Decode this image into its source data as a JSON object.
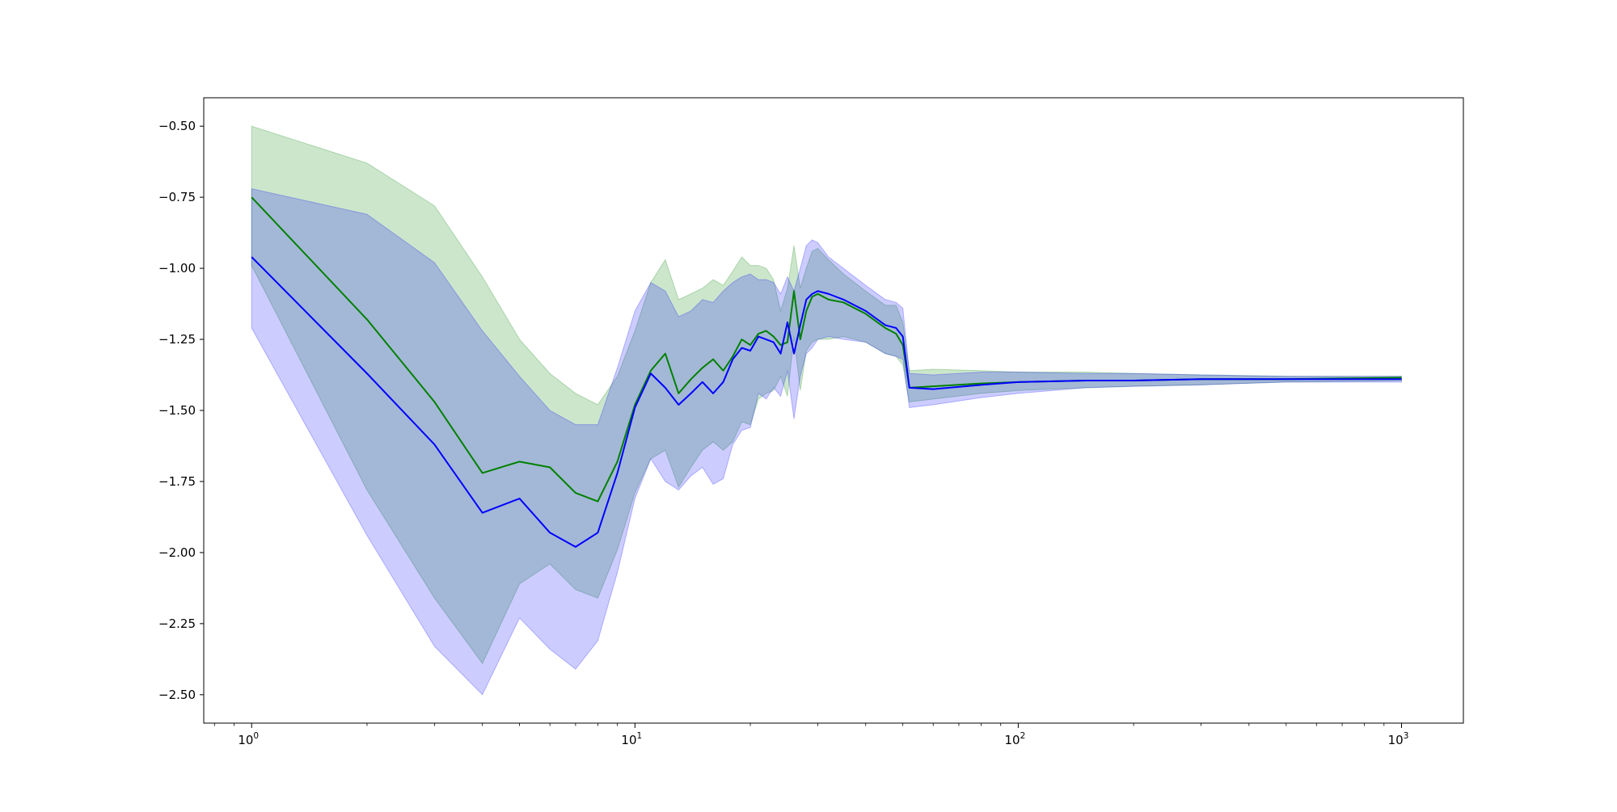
{
  "chart_data": {
    "type": "line",
    "title": "",
    "xlabel": "",
    "ylabel": "",
    "xscale": "log",
    "xlim": [
      0.75,
      1450
    ],
    "ylim": [
      -2.6,
      -0.4
    ],
    "grid": false,
    "legend": "none",
    "x_ticks": [
      {
        "value": 1,
        "base": "10",
        "exp": "0"
      },
      {
        "value": 10,
        "base": "10",
        "exp": "1"
      },
      {
        "value": 100,
        "base": "10",
        "exp": "2"
      },
      {
        "value": 1000,
        "base": "10",
        "exp": "3"
      }
    ],
    "y_ticks": [
      {
        "value": -0.5,
        "label": "−0.50"
      },
      {
        "value": -0.75,
        "label": "−0.75"
      },
      {
        "value": -1.0,
        "label": "−1.00"
      },
      {
        "value": -1.25,
        "label": "−1.25"
      },
      {
        "value": -1.5,
        "label": "−1.50"
      },
      {
        "value": -1.75,
        "label": "−1.75"
      },
      {
        "value": -2.0,
        "label": "−2.00"
      },
      {
        "value": -2.25,
        "label": "−2.25"
      },
      {
        "value": -2.5,
        "label": "−2.50"
      }
    ],
    "series": [
      {
        "color": "#008000",
        "band_color": "#008000",
        "band_opacity": 0.2,
        "x": [
          1,
          2,
          3,
          4,
          5,
          6,
          7,
          8,
          9,
          10,
          11,
          12,
          13,
          14,
          15,
          16,
          17,
          18,
          19,
          20,
          21,
          22,
          23,
          24,
          25,
          26,
          27,
          28,
          29,
          30,
          32,
          35,
          40,
          45,
          48,
          50,
          52,
          60,
          80,
          100,
          150,
          200,
          300,
          500,
          1000
        ],
        "values": [
          -0.75,
          -1.18,
          -1.47,
          -1.72,
          -1.68,
          -1.7,
          -1.79,
          -1.82,
          -1.68,
          -1.48,
          -1.36,
          -1.3,
          -1.44,
          -1.39,
          -1.35,
          -1.32,
          -1.36,
          -1.31,
          -1.25,
          -1.27,
          -1.23,
          -1.22,
          -1.24,
          -1.27,
          -1.26,
          -1.08,
          -1.25,
          -1.15,
          -1.1,
          -1.09,
          -1.11,
          -1.12,
          -1.16,
          -1.21,
          -1.23,
          -1.27,
          -1.42,
          -1.415,
          -1.405,
          -1.4,
          -1.395,
          -1.395,
          -1.39,
          -1.39,
          -1.385
        ],
        "upper": [
          -0.5,
          -0.63,
          -0.78,
          -1.03,
          -1.25,
          -1.37,
          -1.44,
          -1.48,
          -1.38,
          -1.22,
          -1.05,
          -0.97,
          -1.11,
          -1.09,
          -1.07,
          -1.04,
          -1.06,
          -1.01,
          -0.96,
          -0.99,
          -0.99,
          -1.0,
          -1.04,
          -1.15,
          -1.07,
          -0.92,
          -1.07,
          -1.0,
          -0.94,
          -0.93,
          -0.97,
          -1.02,
          -1.08,
          -1.13,
          -1.13,
          -1.19,
          -1.36,
          -1.355,
          -1.36,
          -1.365,
          -1.365,
          -1.37,
          -1.375,
          -1.38,
          -1.38
        ],
        "lower": [
          -0.99,
          -1.78,
          -2.16,
          -2.39,
          -2.11,
          -2.04,
          -2.13,
          -2.16,
          -1.99,
          -1.79,
          -1.67,
          -1.64,
          -1.77,
          -1.7,
          -1.64,
          -1.61,
          -1.64,
          -1.61,
          -1.54,
          -1.55,
          -1.46,
          -1.44,
          -1.43,
          -1.38,
          -1.45,
          -1.24,
          -1.43,
          -1.29,
          -1.26,
          -1.25,
          -1.25,
          -1.24,
          -1.26,
          -1.3,
          -1.31,
          -1.34,
          -1.47,
          -1.46,
          -1.44,
          -1.43,
          -1.42,
          -1.415,
          -1.41,
          -1.4,
          -1.395
        ]
      },
      {
        "color": "#0000ff",
        "band_color": "#0000ff",
        "band_opacity": 0.2,
        "x": [
          1,
          2,
          3,
          4,
          5,
          6,
          7,
          8,
          9,
          10,
          11,
          12,
          13,
          14,
          15,
          16,
          17,
          18,
          19,
          20,
          21,
          22,
          23,
          24,
          25,
          26,
          27,
          28,
          29,
          30,
          32,
          35,
          40,
          45,
          48,
          50,
          52,
          60,
          80,
          100,
          150,
          200,
          300,
          500,
          1000
        ],
        "values": [
          -0.96,
          -1.37,
          -1.62,
          -1.86,
          -1.81,
          -1.93,
          -1.98,
          -1.93,
          -1.72,
          -1.49,
          -1.37,
          -1.42,
          -1.48,
          -1.44,
          -1.4,
          -1.44,
          -1.4,
          -1.32,
          -1.28,
          -1.29,
          -1.24,
          -1.25,
          -1.26,
          -1.3,
          -1.19,
          -1.3,
          -1.2,
          -1.11,
          -1.09,
          -1.08,
          -1.09,
          -1.11,
          -1.15,
          -1.2,
          -1.21,
          -1.24,
          -1.42,
          -1.425,
          -1.41,
          -1.4,
          -1.395,
          -1.395,
          -1.39,
          -1.39,
          -1.39
        ],
        "upper": [
          -0.72,
          -0.81,
          -0.98,
          -1.22,
          -1.38,
          -1.5,
          -1.55,
          -1.55,
          -1.35,
          -1.15,
          -1.05,
          -1.08,
          -1.17,
          -1.15,
          -1.11,
          -1.12,
          -1.08,
          -1.05,
          -1.03,
          -1.02,
          -1.04,
          -1.04,
          -1.05,
          -1.09,
          -1.03,
          -1.08,
          -1.0,
          -0.92,
          -0.9,
          -0.91,
          -0.96,
          -1.0,
          -1.06,
          -1.11,
          -1.12,
          -1.14,
          -1.37,
          -1.375,
          -1.365,
          -1.365,
          -1.37,
          -1.37,
          -1.375,
          -1.38,
          -1.38
        ],
        "lower": [
          -1.21,
          -1.94,
          -2.33,
          -2.5,
          -2.23,
          -2.34,
          -2.41,
          -2.31,
          -2.07,
          -1.81,
          -1.67,
          -1.75,
          -1.78,
          -1.73,
          -1.7,
          -1.76,
          -1.74,
          -1.62,
          -1.57,
          -1.56,
          -1.44,
          -1.46,
          -1.42,
          -1.45,
          -1.36,
          -1.53,
          -1.38,
          -1.3,
          -1.28,
          -1.25,
          -1.24,
          -1.25,
          -1.26,
          -1.3,
          -1.31,
          -1.32,
          -1.49,
          -1.48,
          -1.455,
          -1.44,
          -1.42,
          -1.415,
          -1.41,
          -1.4,
          -1.4
        ]
      }
    ]
  }
}
